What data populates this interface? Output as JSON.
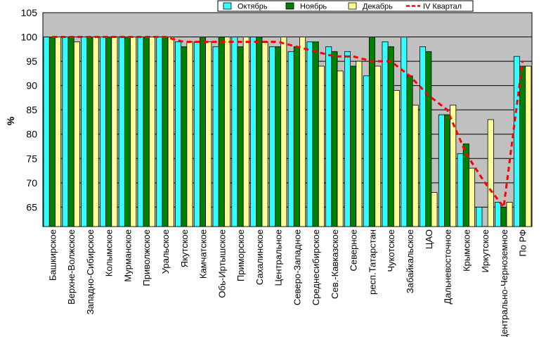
{
  "chart_data": {
    "type": "bar",
    "ylabel": "%",
    "ylim": [
      61,
      105
    ],
    "yticks": [
      65,
      70,
      75,
      80,
      85,
      90,
      95,
      100,
      105
    ],
    "grid": true,
    "legend_position": "top-right",
    "categories": [
      "Башкирское",
      "Верхне-Волжское",
      "Западно-Сибирское",
      "Колымское",
      "Мурманское",
      "Приволжское",
      "Уральское",
      "Якутское",
      "Камчатское",
      "Обь-Иртышское",
      "Приморское",
      "Сахалинское",
      "Центральное",
      "Северо-Западное",
      "Среднесибирское",
      "Сев.-Кавказское",
      "Северное",
      "респ.Татарстан",
      "Чукотское",
      "Забайкальское",
      "ЦАО",
      "Дальневосточное",
      "Крымское",
      "Иркутское",
      "Центрально-Черноземное",
      "По РФ"
    ],
    "series": [
      {
        "name": "Октябрь",
        "type": "bar",
        "color": "#33ffff",
        "values": [
          100,
          100,
          100,
          100,
          100,
          100,
          100,
          99,
          99,
          98,
          100,
          100,
          98,
          97,
          99,
          98,
          97,
          92,
          99,
          100,
          98,
          84,
          76,
          65,
          66,
          96
        ]
      },
      {
        "name": "Ноябрь",
        "type": "bar",
        "color": "#008000",
        "values": [
          100,
          100,
          100,
          100,
          100,
          100,
          100,
          98,
          100,
          100,
          98,
          100,
          98,
          98,
          99,
          97,
          94,
          100,
          98,
          92,
          97,
          84,
          78,
          61,
          65,
          94
        ]
      },
      {
        "name": "Декабрь",
        "type": "bar",
        "color": "#ffff99",
        "values": [
          100,
          99,
          100,
          100,
          100,
          100,
          100,
          99,
          99,
          100,
          100,
          99,
          100,
          100,
          94,
          93,
          95,
          94,
          89,
          86,
          68,
          86,
          73,
          83,
          66,
          94
        ]
      },
      {
        "name": "IV Квартал",
        "type": "line",
        "color": "#ff0000",
        "values": [
          100,
          100,
          100,
          100,
          100,
          100,
          100,
          99,
          99,
          99,
          99,
          99,
          99,
          98,
          97,
          96,
          96,
          95,
          95,
          92,
          88,
          85,
          76,
          70,
          65,
          95
        ]
      }
    ]
  }
}
